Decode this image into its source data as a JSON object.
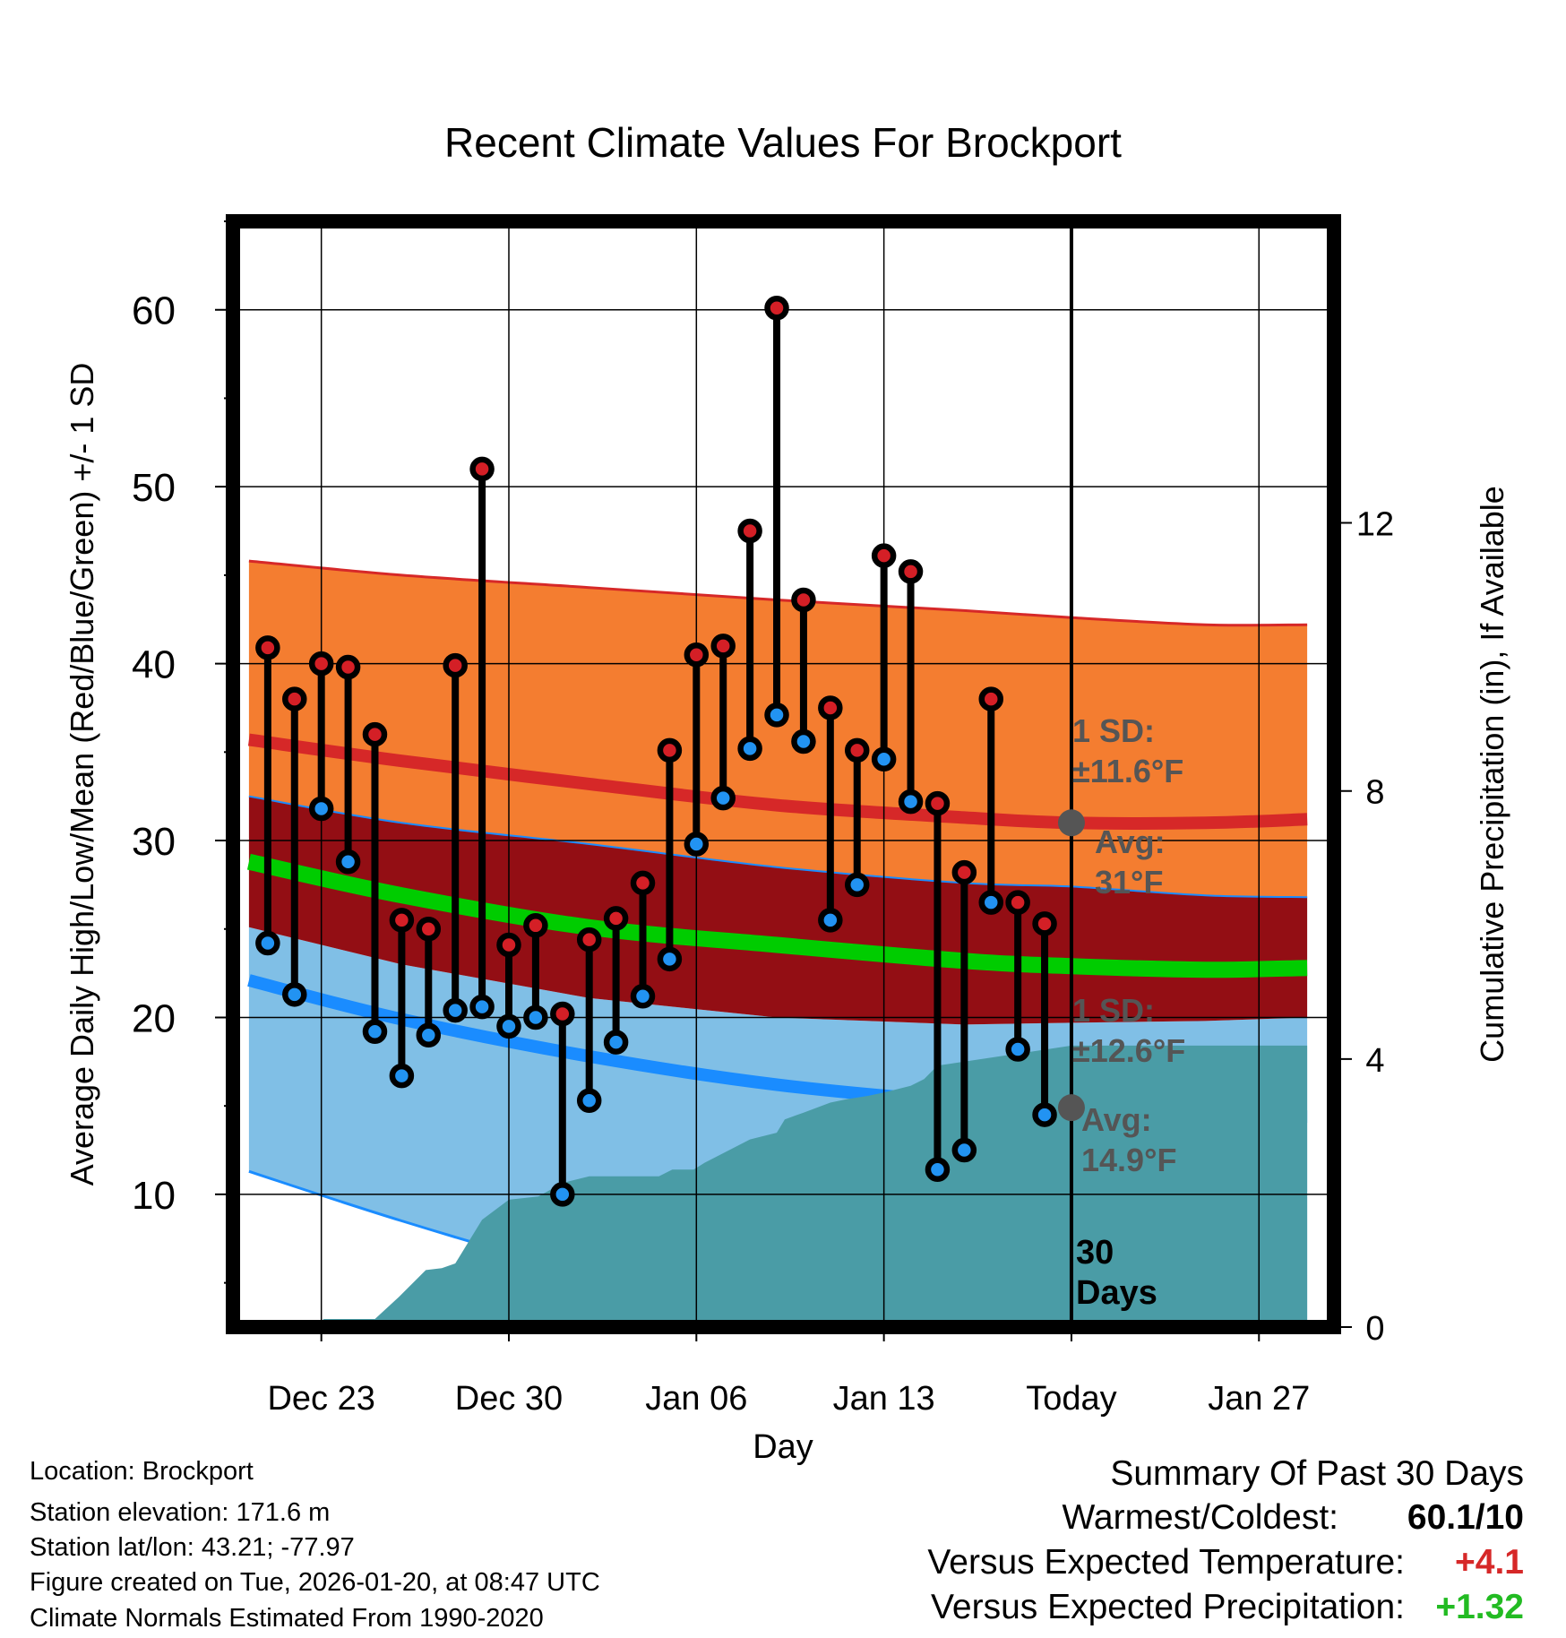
{
  "title": "Recent Climate Values For Brockport",
  "chart_data": {
    "type": "line",
    "title": "Recent Climate Values For Brockport",
    "xlabel": "Day",
    "ylabel": "Average Daily High/Low/Mean (Red/Blue/Green) +/- 1 SD",
    "y2label": "Cumulative Precipitation (in), If Available",
    "ylim": [
      2.5,
      65
    ],
    "y2lim": [
      0,
      16.5
    ],
    "xlim": [
      -3.3,
      37.8
    ],
    "x_ticks": [
      {
        "pos": 0,
        "label": "Dec 23"
      },
      {
        "pos": 7,
        "label": "Dec 30"
      },
      {
        "pos": 14,
        "label": "Jan 06"
      },
      {
        "pos": 21,
        "label": "Jan 13"
      },
      {
        "pos": 28,
        "label": "Today"
      },
      {
        "pos": 35,
        "label": "Jan 27"
      }
    ],
    "y_ticks": [
      10,
      20,
      30,
      40,
      50,
      60
    ],
    "y2_ticks": [
      0,
      4,
      8,
      12
    ],
    "daily_obs": {
      "day": [
        -2,
        -1,
        0,
        1,
        2,
        3,
        4,
        5,
        6,
        7,
        8,
        9,
        10,
        11,
        12,
        13,
        14,
        15,
        16,
        17,
        18,
        19,
        20,
        21,
        22,
        23,
        24,
        25,
        26,
        27
      ],
      "high": [
        40.9,
        38.0,
        40.0,
        39.8,
        36.0,
        25.5,
        25.0,
        39.9,
        51.0,
        24.1,
        25.2,
        20.2,
        24.4,
        25.6,
        27.6,
        35.1,
        40.5,
        41.0,
        47.5,
        60.1,
        43.6,
        37.5,
        35.1,
        46.1,
        45.2,
        32.1,
        28.2,
        38.0,
        26.5,
        25.3
      ],
      "low": [
        24.2,
        21.3,
        31.8,
        28.8,
        19.2,
        16.7,
        19.0,
        20.4,
        20.6,
        19.5,
        20.0,
        10.0,
        15.3,
        18.6,
        21.2,
        23.3,
        29.8,
        32.4,
        35.2,
        37.1,
        35.6,
        25.5,
        27.5,
        34.6,
        32.2,
        11.4,
        12.5,
        26.5,
        18.2,
        14.5
      ]
    },
    "normals": {
      "x": [
        -2.7,
        3,
        10,
        17,
        24,
        28,
        33,
        36.8
      ],
      "high_mean": [
        35.7,
        34.5,
        33.2,
        32.0,
        31.3,
        31.0,
        31.0,
        31.2
      ],
      "high_upper": [
        45.8,
        45.0,
        44.3,
        43.6,
        43.0,
        42.6,
        42.2,
        42.2
      ],
      "high_lower": [
        32.5,
        31.0,
        29.8,
        28.5,
        27.6,
        27.4,
        26.9,
        26.8
      ],
      "low_mean": [
        22.1,
        19.9,
        17.8,
        16.2,
        15.2,
        14.9,
        14.4,
        14.4
      ],
      "low_upper": [
        25.1,
        23.0,
        21.1,
        20.0,
        19.6,
        19.7,
        19.8,
        20.0
      ],
      "low_lower": [
        11.3,
        8.5,
        5.4,
        2.6,
        1.0,
        0.0,
        0.0,
        0.0
      ],
      "mean": [
        28.8,
        26.9,
        25.1,
        24.1,
        23.2,
        22.9,
        22.7,
        22.8
      ]
    },
    "precip_cumulative": {
      "x": [
        -2.7,
        -0.4,
        0.1,
        2.0,
        2.9,
        3.9,
        4.5,
        5.0,
        6.0,
        7.0,
        8.1,
        9.0,
        10.0,
        11.3,
        12.6,
        13.1,
        13.9,
        14.3,
        16.0,
        17.0,
        17.3,
        18.0,
        19.0,
        19.6,
        20.4,
        21.0,
        22.0,
        22.5,
        23.0,
        28.0,
        36.8
      ],
      "values": [
        0,
        0,
        0.12,
        0.12,
        0.45,
        0.85,
        0.88,
        0.95,
        1.6,
        1.9,
        1.95,
        2.15,
        2.25,
        2.25,
        2.25,
        2.35,
        2.35,
        2.45,
        2.8,
        2.9,
        3.1,
        3.2,
        3.35,
        3.4,
        3.45,
        3.5,
        3.6,
        3.7,
        3.9,
        4.2,
        4.2
      ]
    },
    "today": 28,
    "annotations": {
      "high_sd_label": [
        "1 SD:",
        "±11.6°F"
      ],
      "high_avg_label": [
        "Avg:",
        "31°F"
      ],
      "low_sd_label": [
        "1 SD:",
        "±12.6°F"
      ],
      "low_avg_label": [
        "Avg:",
        "14.9°F"
      ],
      "days_label": [
        "30",
        "Days"
      ]
    },
    "colors": {
      "high_band": "#f47d30",
      "high_line": "#d62828",
      "overlap_band": "#930e14",
      "low_band": "#80bfe6",
      "low_line": "#1a8cff",
      "mean_line": "#00cc00",
      "precip_fill": "#4a9ca6",
      "high_dot": "#d41f26",
      "low_dot": "#2293f2"
    }
  },
  "footer": {
    "location": "Location: Brockport",
    "elevation": "Station elevation: 171.6 m",
    "latlon": "Station lat/lon: 43.21; -77.97",
    "created": "Figure created on Tue, 2026-01-20, at 08:47 UTC",
    "normals": "Climate Normals Estimated From 1990-2020"
  },
  "summary": {
    "heading": "Summary Of Past 30 Days",
    "warm_cold_label": "Warmest/Coldest:",
    "warm_cold_value": "60.1/10",
    "temp_label": "Versus Expected Temperature:",
    "temp_value": "+4.1",
    "precip_label": "Versus Expected Precipitation:",
    "precip_value": "+1.32",
    "temp_color": "#d62828",
    "precip_color": "#22bb22"
  }
}
